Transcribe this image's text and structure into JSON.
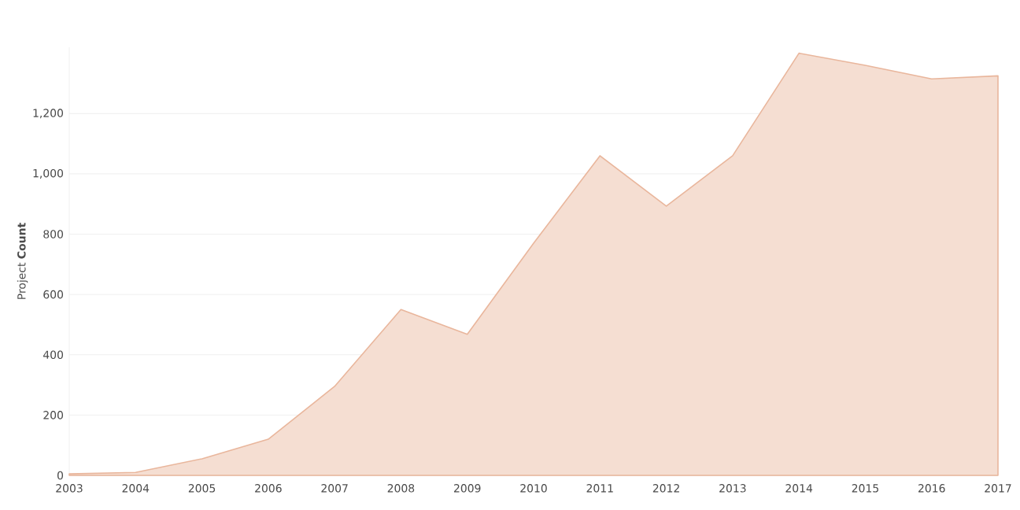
{
  "chart_data": {
    "type": "area",
    "ylabel": "Project **Count**",
    "x": [
      2003,
      2004,
      2005,
      2006,
      2007,
      2008,
      2009,
      2010,
      2011,
      2012,
      2013,
      2014,
      2015,
      2016,
      2017
    ],
    "series": [
      {
        "color": "#e9b69c",
        "values": [
          5,
          10,
          55,
          120,
          295,
          550,
          468,
          770,
          1060,
          893,
          1060,
          1400,
          1360,
          1315,
          1325
        ]
      }
    ],
    "xlim": [
      2003,
      2017
    ],
    "xticks": [
      2003,
      2004,
      2005,
      2006,
      2007,
      2008,
      2009,
      2010,
      2011,
      2012,
      2013,
      2014,
      2015,
      2016,
      2017
    ],
    "ylim": [
      0,
      1420
    ],
    "yticks": [
      0,
      200,
      400,
      600,
      800,
      {
        "value": 1000,
        "label": "1,000"
      },
      {
        "value": 1200,
        "label": "1,200"
      }
    ],
    "grid": "y"
  }
}
